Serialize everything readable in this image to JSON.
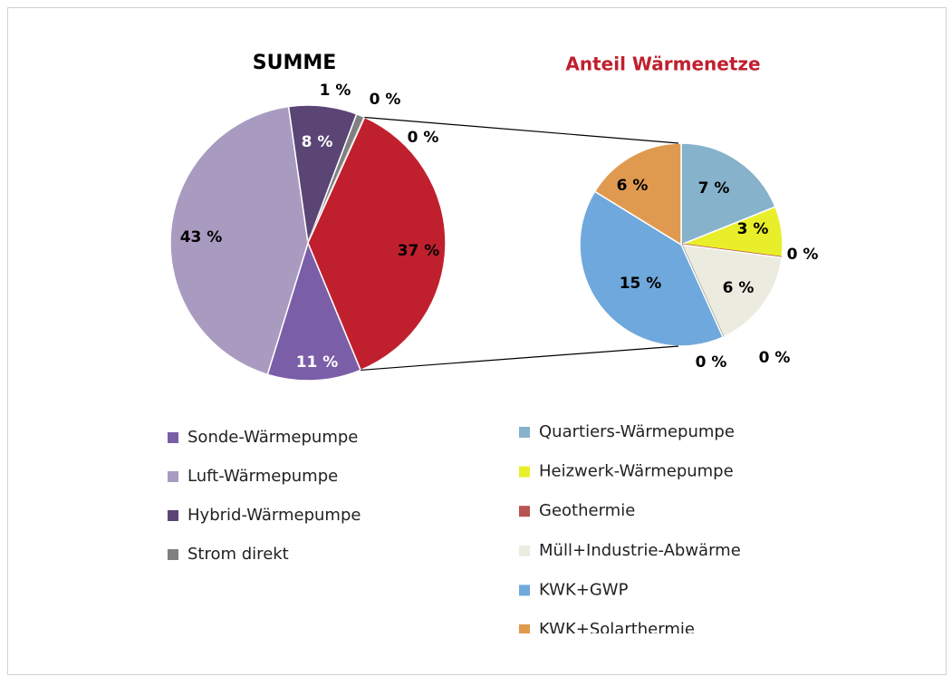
{
  "chart_data": [
    {
      "type": "pie",
      "title": "SUMME",
      "categories": [
        "Sonde-Wärmepumpe",
        "Luft-Wärmepumpe",
        "Hybrid-Wärmepumpe",
        "Strom direkt",
        null,
        null,
        null
      ],
      "values": [
        11,
        43,
        8,
        1,
        0,
        0,
        37
      ],
      "value_labels": [
        "11 %",
        "43 %",
        "8 %",
        "1 %",
        "0 %",
        "0 %",
        "37 %"
      ],
      "colors": [
        "#7b5ea8",
        "#a99bc0",
        "#5a4575",
        "#808080",
        "#b0b0b0",
        "#c8c8c8",
        "#c0202e"
      ]
    },
    {
      "type": "pie",
      "title": "Anteil Wärmenetze",
      "categories": [
        "Quartiers-Wärmepumpe",
        "Heizwerk-Wärmepumpe",
        "Geothermie",
        "Müll+Industrie-Abwärme",
        null,
        null,
        "KWK+GWP",
        "KWK+Solarthermie"
      ],
      "values": [
        7,
        3,
        0,
        6,
        0,
        0,
        15,
        6
      ],
      "value_labels": [
        "7 %",
        "3 %",
        "0 %",
        "6 %",
        "0 %",
        "0 %",
        "15 %",
        "6 %"
      ],
      "colors": [
        "#86b2cb",
        "#e8ef2a",
        "#b85450",
        "#ecebe0",
        "#999999",
        "#aaaaaa",
        "#6fa8dc",
        "#e09a4f"
      ]
    }
  ]
}
